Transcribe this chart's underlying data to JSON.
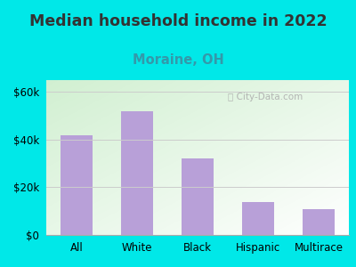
{
  "title": "Median household income in 2022",
  "subtitle": "Moraine, OH",
  "categories": [
    "All",
    "White",
    "Black",
    "Hispanic",
    "Multirace"
  ],
  "values": [
    42000,
    52000,
    32000,
    14000,
    11000
  ],
  "bar_color": "#b8a0d8",
  "title_fontsize": 12.5,
  "title_color": "#333333",
  "subtitle_fontsize": 10.5,
  "subtitle_color": "#3399aa",
  "bg_outer": "#00e8e8",
  "ylim": [
    0,
    65000
  ],
  "yticks": [
    0,
    20000,
    40000,
    60000
  ],
  "watermark": "City-Data.com",
  "grid_color": "#cccccc"
}
